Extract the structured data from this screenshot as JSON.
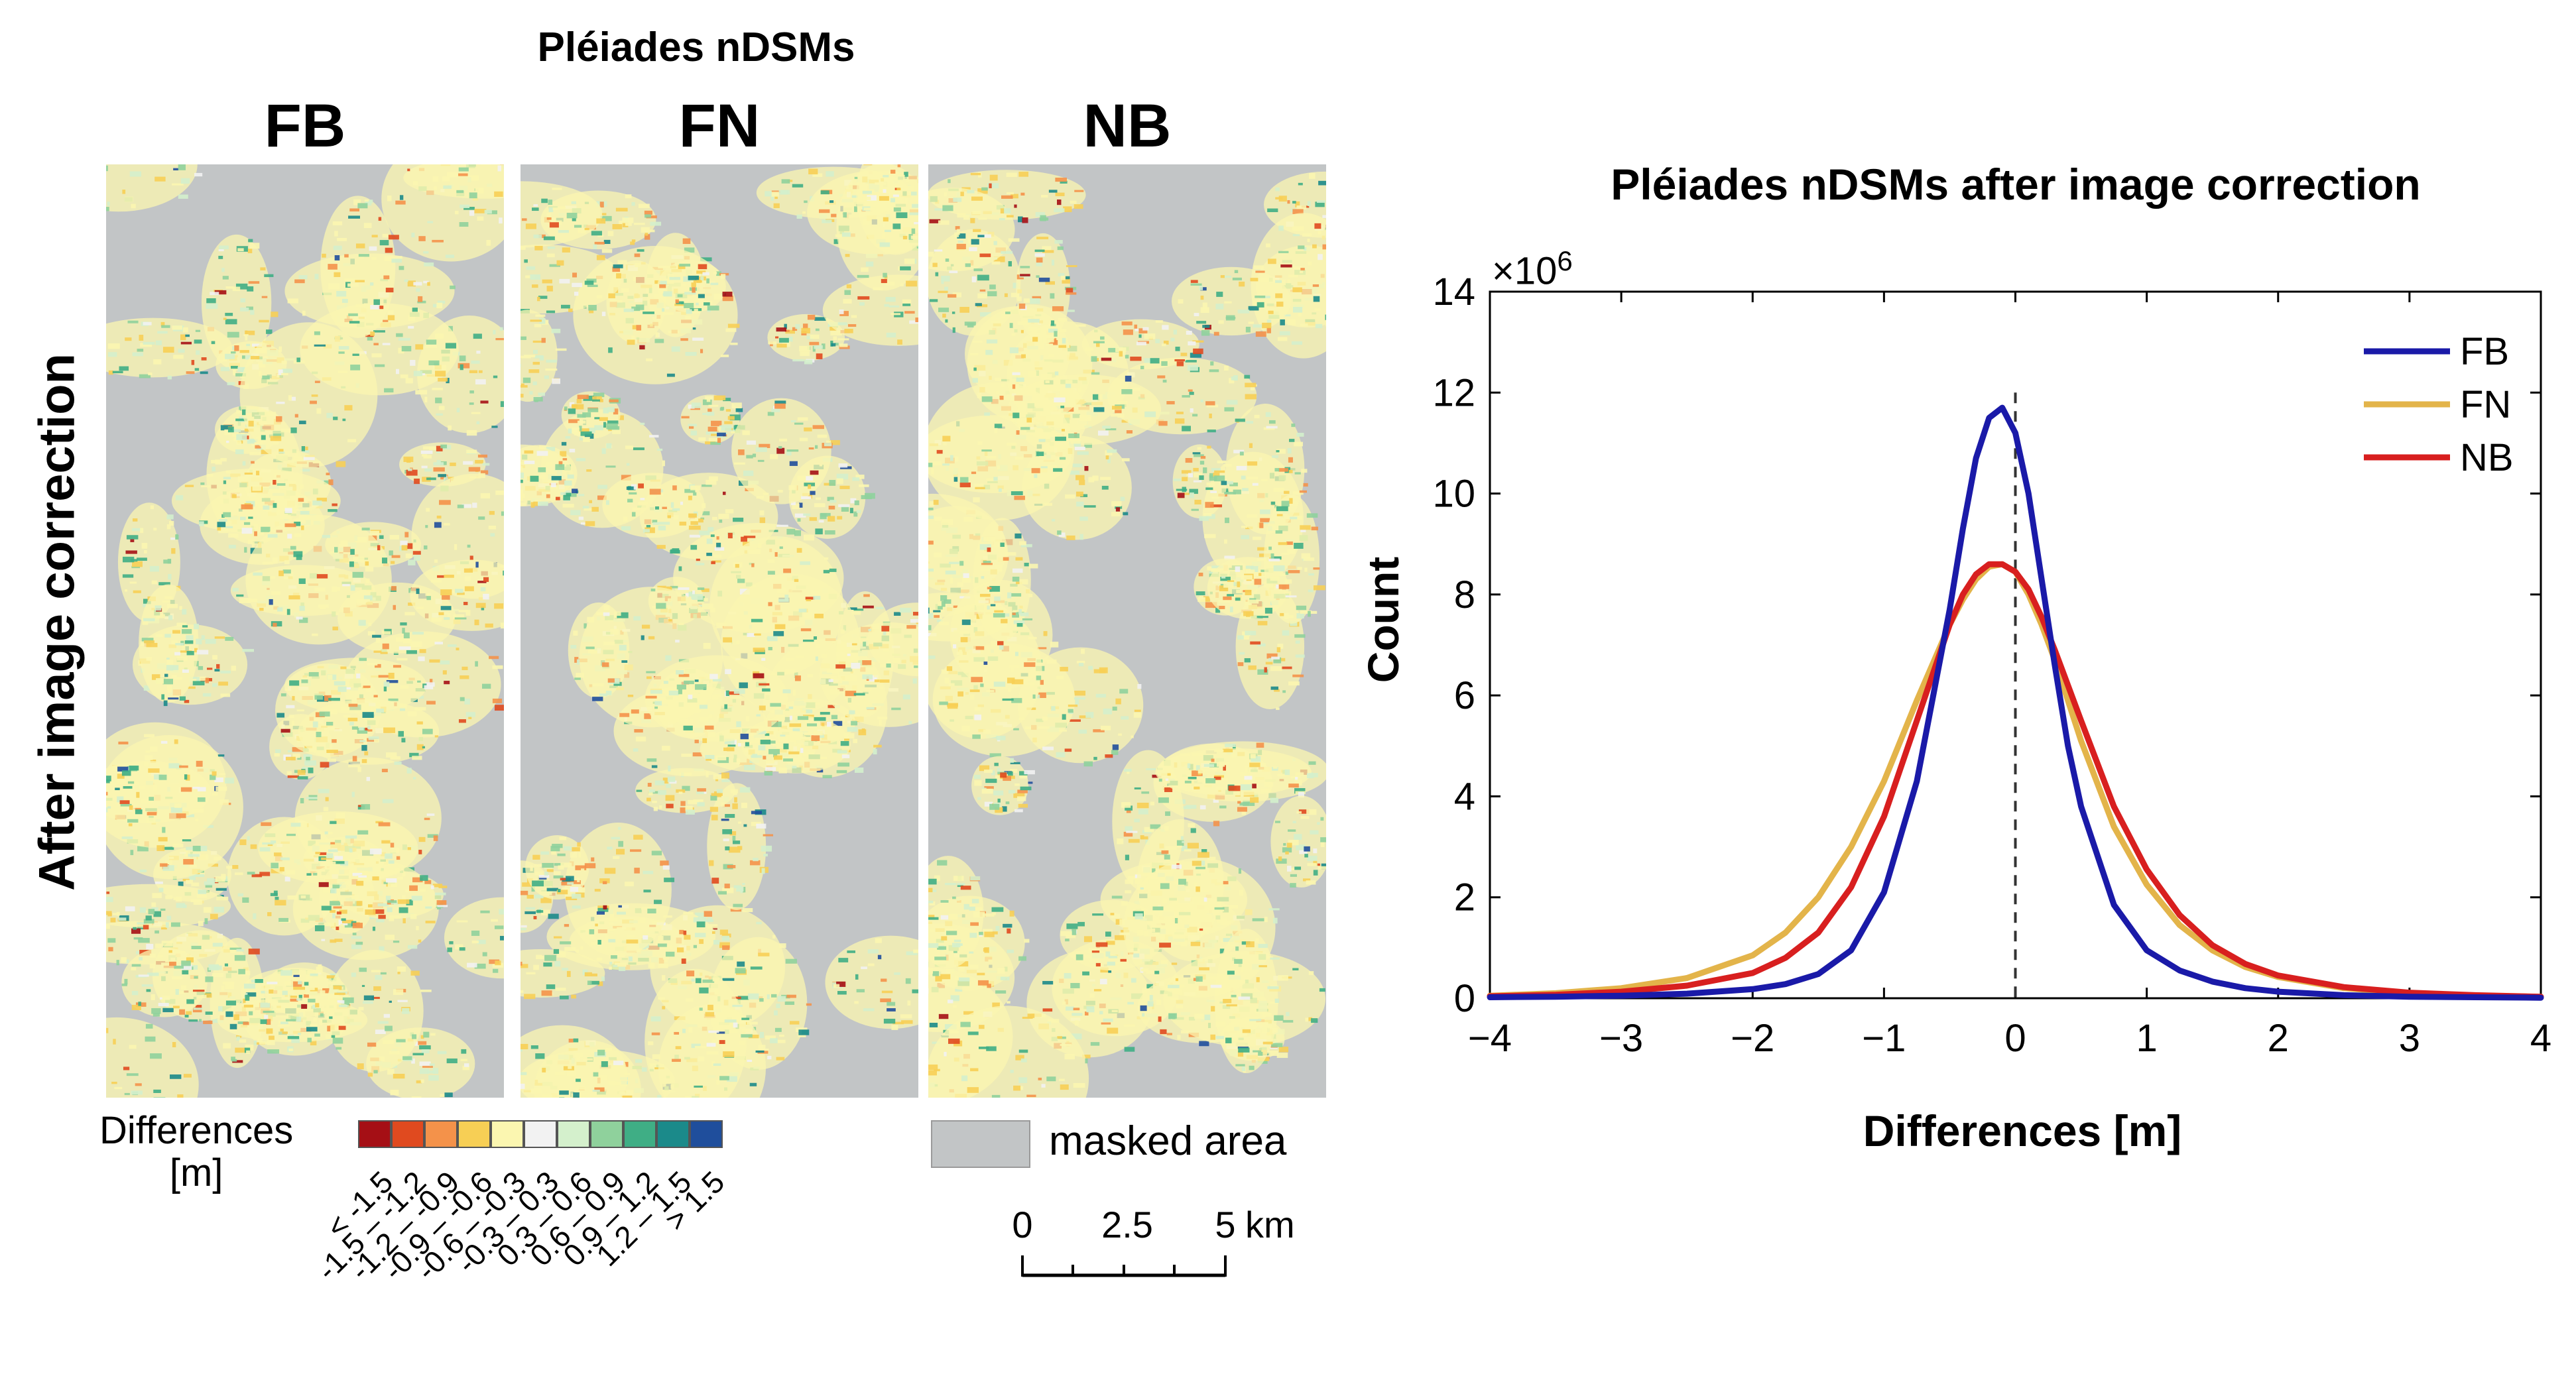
{
  "figure": {
    "maps_title": "Pléiades nDSMs",
    "row_label": "After image correction",
    "panels": [
      "FB",
      "FN",
      "NB"
    ]
  },
  "legend": {
    "title_line1": "Differences",
    "title_line2": "[m]",
    "masked_label": "masked area",
    "masked_color": "#c2c5c6",
    "classes": [
      {
        "label": "< -1.5",
        "color": "#a50f15"
      },
      {
        "label": "-1.5 – -1.2",
        "color": "#e04a1f"
      },
      {
        "label": "-1.2 – -0.9",
        "color": "#f4924a"
      },
      {
        "label": "-0.9 – -0.6",
        "color": "#f7cf55"
      },
      {
        "label": "-0.6 – -0.3",
        "color": "#fbf6b0"
      },
      {
        "label": "-0.3 – 0.3",
        "color": "#f2f2f2"
      },
      {
        "label": "0.3 – 0.6",
        "color": "#d4f0cc"
      },
      {
        "label": "0.6 – 0.9",
        "color": "#8fd19c"
      },
      {
        "label": "0.9 – 1.2",
        "color": "#3fae85"
      },
      {
        "label": "1.2 – 1.5",
        "color": "#1b8a8a"
      },
      {
        "label": "> 1.5",
        "color": "#1f4e9c"
      }
    ]
  },
  "scalebar": {
    "ticks": [
      "0",
      "2.5",
      "5"
    ],
    "unit": "km"
  },
  "chart_data": {
    "type": "line",
    "title": "Pléiades nDSMs after image correction",
    "xlabel": "Differences [m]",
    "ylabel": "Count",
    "y_multiplier_label": "×10",
    "y_multiplier_exp": "6",
    "xlim": [
      -4,
      4
    ],
    "ylim": [
      0,
      14
    ],
    "xticks": [
      -4,
      -3,
      -2,
      -1,
      0,
      1,
      2,
      3,
      4
    ],
    "xtick_labels": [
      "−4",
      "−3",
      "−2",
      "−1",
      "0",
      "1",
      "2",
      "3",
      "4"
    ],
    "yticks": [
      0,
      2,
      4,
      6,
      8,
      10,
      12,
      14
    ],
    "ytick_labels": [
      "0",
      "2",
      "4",
      "6",
      "8",
      "10",
      "12",
      "14"
    ],
    "vline_x": 0,
    "legend_position": "top-right",
    "x": [
      -4,
      -3.5,
      -3,
      -2.5,
      -2,
      -1.75,
      -1.5,
      -1.25,
      -1,
      -0.75,
      -0.5,
      -0.4,
      -0.3,
      -0.2,
      -0.1,
      0,
      0.1,
      0.2,
      0.3,
      0.4,
      0.5,
      0.75,
      1,
      1.25,
      1.5,
      1.75,
      2,
      2.5,
      3,
      3.5,
      4
    ],
    "series": [
      {
        "name": "FB",
        "color": "#1a1aa8",
        "values": [
          0.02,
          0.03,
          0.05,
          0.09,
          0.18,
          0.28,
          0.48,
          0.95,
          2.1,
          4.3,
          7.7,
          9.3,
          10.7,
          11.5,
          11.7,
          11.2,
          10.0,
          8.3,
          6.6,
          5.0,
          3.8,
          1.85,
          0.95,
          0.55,
          0.33,
          0.2,
          0.13,
          0.06,
          0.03,
          0.02,
          0.01
        ]
      },
      {
        "name": "FN",
        "color": "#e3b44a",
        "values": [
          0.05,
          0.1,
          0.2,
          0.4,
          0.85,
          1.3,
          2.0,
          3.0,
          4.3,
          5.9,
          7.4,
          7.9,
          8.3,
          8.55,
          8.6,
          8.45,
          8.0,
          7.4,
          6.7,
          5.9,
          5.1,
          3.4,
          2.25,
          1.45,
          0.95,
          0.62,
          0.42,
          0.2,
          0.1,
          0.05,
          0.03
        ]
      },
      {
        "name": "NB",
        "color": "#d81f1f",
        "values": [
          0.04,
          0.07,
          0.13,
          0.25,
          0.5,
          0.8,
          1.3,
          2.2,
          3.6,
          5.5,
          7.4,
          8.0,
          8.4,
          8.6,
          8.6,
          8.45,
          8.1,
          7.55,
          6.9,
          6.2,
          5.5,
          3.8,
          2.55,
          1.65,
          1.05,
          0.68,
          0.45,
          0.22,
          0.11,
          0.06,
          0.03
        ]
      }
    ]
  }
}
